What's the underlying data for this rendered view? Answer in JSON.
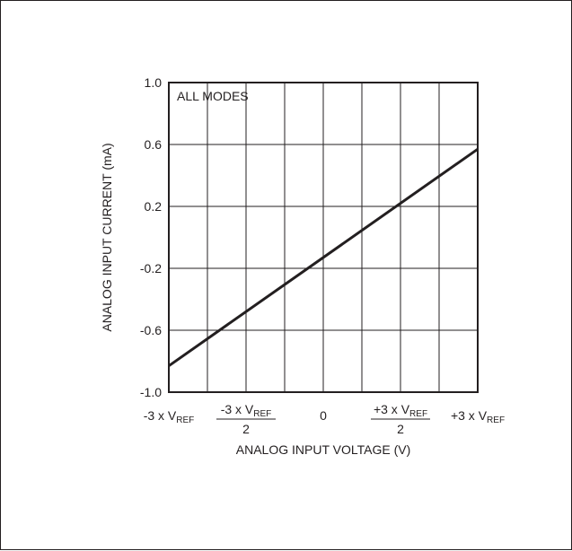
{
  "chart_data": {
    "type": "line",
    "title": "",
    "xlabel": "ANALOG INPUT VOLTAGE (V)",
    "ylabel": "ANALOG INPUT CURRENT (mA)",
    "annotation": "ALL MODES",
    "xlim": [
      -1,
      1
    ],
    "ylim": [
      -1.0,
      1.0
    ],
    "grid": true,
    "x_ticks": [
      {
        "value": -1,
        "lines": [
          "-3 x V",
          "REF"
        ],
        "fraction": false
      },
      {
        "value": -0.5,
        "lines": [
          "-3 x V",
          "REF",
          "2"
        ],
        "fraction": true
      },
      {
        "value": 0,
        "lines": [
          "0"
        ],
        "fraction": false
      },
      {
        "value": 0.5,
        "lines": [
          "+3 x V",
          "REF",
          "2"
        ],
        "fraction": true
      },
      {
        "value": 1,
        "lines": [
          "+3 x V",
          "REF"
        ],
        "fraction": false
      }
    ],
    "y_ticks": [
      {
        "value": 1.0,
        "label": "1.0"
      },
      {
        "value": 0.6,
        "label": "0.6"
      },
      {
        "value": 0.2,
        "label": "0.2"
      },
      {
        "value": -0.2,
        "label": "-0.2"
      },
      {
        "value": -0.6,
        "label": "-0.6"
      },
      {
        "value": -1.0,
        "label": "-1.0"
      }
    ],
    "series": [
      {
        "x": [
          -1,
          1
        ],
        "y": [
          -0.83,
          0.57
        ]
      }
    ],
    "colors": {
      "line": "#231f20",
      "grid": "#231f20"
    }
  }
}
